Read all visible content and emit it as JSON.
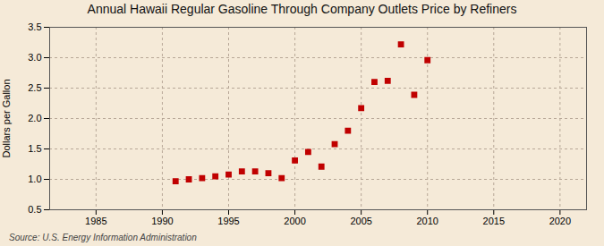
{
  "chart_data": {
    "type": "scatter",
    "title": "Annual Hawaii Regular Gasoline Through Company Outlets Price by Refiners",
    "ylabel": "Dollars per Gallon",
    "source": "Source: U.S. Energy Information Administration",
    "x": [
      1991,
      1992,
      1993,
      1994,
      1995,
      1996,
      1997,
      1998,
      1999,
      2000,
      2001,
      2002,
      2003,
      2004,
      2005,
      2006,
      2007,
      2008,
      2009,
      2010
    ],
    "values": [
      0.97,
      1.0,
      1.02,
      1.05,
      1.08,
      1.13,
      1.13,
      1.1,
      1.02,
      1.31,
      1.45,
      1.21,
      1.58,
      1.8,
      2.17,
      2.6,
      2.62,
      3.22,
      2.39,
      2.96
    ],
    "color": "#c00000",
    "marker": "square",
    "xlim": [
      1981.5,
      2022
    ],
    "ylim": [
      0.5,
      3.5
    ],
    "xticks": [
      1985,
      1990,
      1995,
      2000,
      2005,
      2010,
      2015,
      2020
    ],
    "yticks": [
      0.5,
      {
        "value": 1,
        "label": "1.0"
      },
      1.5,
      {
        "value": 2,
        "label": "2.0"
      },
      2.5,
      {
        "value": 3,
        "label": "3.0"
      },
      3.5
    ],
    "grid": true
  }
}
